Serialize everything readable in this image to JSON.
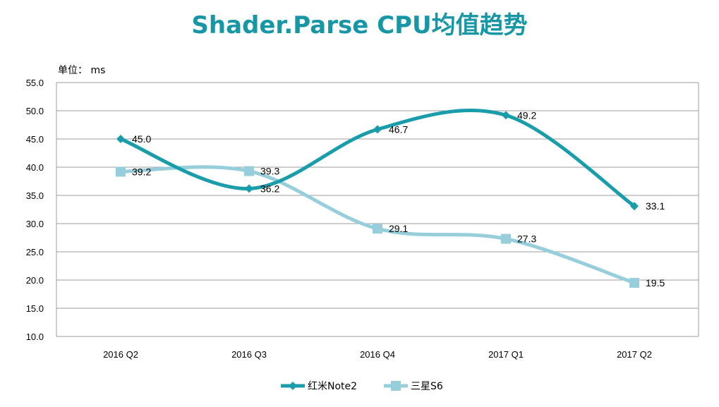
{
  "chart_data": {
    "type": "line",
    "title": "Shader.Parse CPU均值趋势",
    "unit_label": "单位： ms",
    "categories": [
      "2016 Q2",
      "2016 Q3",
      "2016 Q4",
      "2017 Q1",
      "2017 Q2"
    ],
    "ylim": [
      10.0,
      55.0
    ],
    "yticks": [
      "10.0",
      "15.0",
      "20.0",
      "25.0",
      "30.0",
      "35.0",
      "40.0",
      "45.0",
      "50.0",
      "55.0"
    ],
    "grid": true,
    "smooth": true,
    "legend_position": "bottom",
    "series": [
      {
        "name": "红米Note2",
        "values": [
          45.0,
          36.2,
          46.7,
          49.2,
          33.1
        ],
        "labels": [
          "45.0",
          "36.2",
          "46.7",
          "49.2",
          "33.1"
        ],
        "color": "#1a9daa",
        "marker": "diamond"
      },
      {
        "name": "三星S6",
        "values": [
          39.2,
          39.3,
          29.1,
          27.3,
          19.5
        ],
        "labels": [
          "39.2",
          "39.3",
          "29.1",
          "27.3",
          "19.5"
        ],
        "color": "#96cfdb",
        "marker": "square"
      }
    ]
  }
}
